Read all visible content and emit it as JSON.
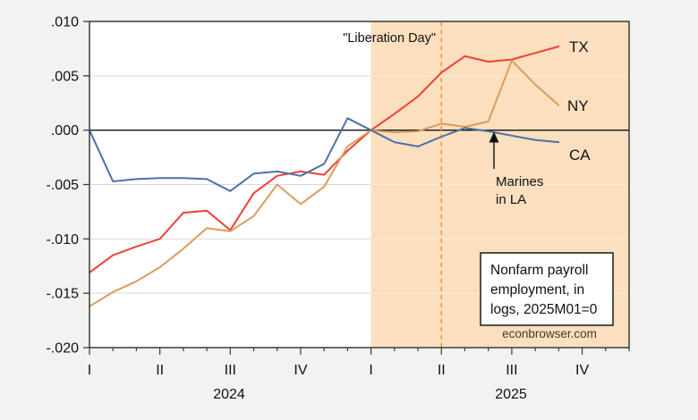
{
  "page": {
    "background_color": "#f2f2f1",
    "plot_background_color": "#ffffff",
    "grid_color": "#d9d9d9",
    "border_color": "#3a3a3a"
  },
  "chart_data": {
    "type": "line",
    "title": "",
    "x_axis": {
      "months_total": 23,
      "first_month": "2024M01",
      "last_data_month": "2025M09",
      "quarter_labels": [
        "I",
        "II",
        "III",
        "IV",
        "I",
        "II",
        "III",
        "IV"
      ],
      "quarter_month_index": [
        0,
        3,
        6,
        9,
        12,
        15,
        18,
        21
      ],
      "year_labels": [
        {
          "text": "2024",
          "center_x": 256
        },
        {
          "text": "2025",
          "center_x": 571
        }
      ]
    },
    "y_axis": {
      "range": [
        -0.02,
        0.01
      ],
      "ticks": [
        0.01,
        0.005,
        0.0,
        -0.005,
        -0.01,
        -0.015,
        -0.02
      ],
      "tick_labels": [
        ".010",
        ".005",
        ".000",
        "-.005",
        "-.010",
        "-.015",
        "-.020"
      ],
      "grid": true
    },
    "series": [
      {
        "name": "TX",
        "color": "#ee4135",
        "values": [
          -0.0131,
          -0.0115,
          -0.0107,
          -0.01,
          -0.0076,
          -0.0074,
          -0.0092,
          -0.0058,
          -0.0042,
          -0.0038,
          -0.0041,
          -0.0019,
          0.0,
          0.0015,
          0.0031,
          0.0053,
          0.0068,
          0.0063,
          0.0065,
          0.0071,
          0.0077
        ]
      },
      {
        "name": "NY",
        "color": "#dc9c5d",
        "label_color": "#dd9c35",
        "values": [
          -0.0162,
          -0.0149,
          -0.0139,
          -0.0126,
          -0.0109,
          -0.009,
          -0.0093,
          -0.0079,
          -0.005,
          -0.0068,
          -0.0052,
          -0.0015,
          0.0,
          -0.0002,
          -0.0001,
          0.0006,
          0.0003,
          0.0008,
          0.0064,
          0.0042,
          0.0023
        ]
      },
      {
        "name": "CA",
        "color": "#4d71a7",
        "values": [
          0.0,
          -0.0047,
          -0.0045,
          -0.0044,
          -0.0044,
          -0.0045,
          -0.0056,
          -0.004,
          -0.0038,
          -0.0042,
          -0.0031,
          0.0011,
          0.0,
          -0.0011,
          -0.0015,
          -0.0006,
          0.0002,
          -0.0001,
          -0.0005,
          -0.0009,
          -0.0011
        ]
      }
    ],
    "shaded_region": {
      "from_month_index": 12,
      "to_month_index": 23,
      "color": "#fbdfbe",
      "grid_color_inside": "#f9ecdb"
    },
    "vline": {
      "month_index": 15,
      "label": "\"Liberation Day\"",
      "color": "#f0922f",
      "style": "dashed"
    },
    "annotations": {
      "marines": {
        "line1": "Marines",
        "line2": "in LA",
        "arrow_color": "#111111"
      },
      "note_box": {
        "line1": "Nonfarm payroll",
        "line2": "employment, in",
        "line3": "logs, 2025M01=0"
      },
      "credit": "econbrowser.com"
    },
    "legend_position": "inline-right"
  }
}
